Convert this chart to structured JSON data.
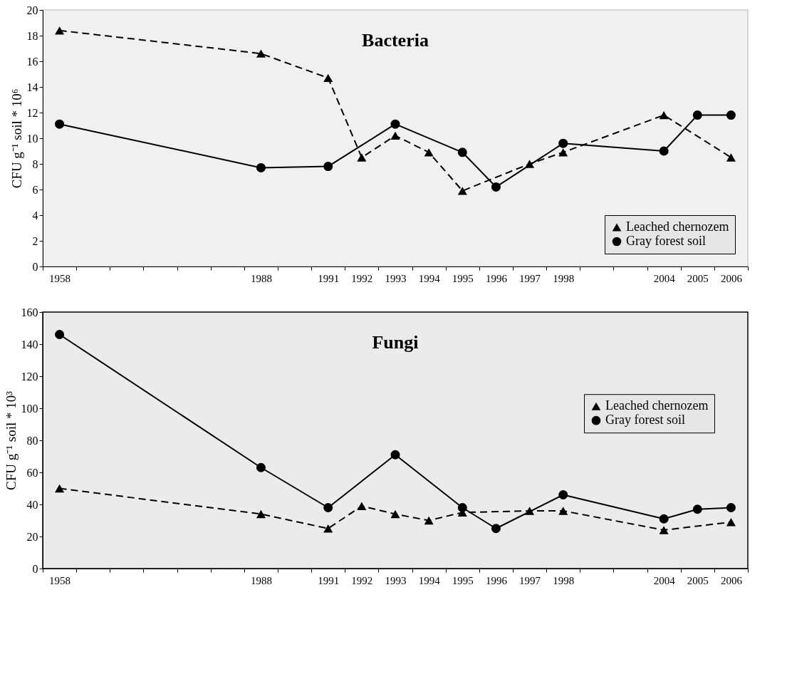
{
  "chart_data": [
    {
      "type": "line",
      "title": "Bacteria",
      "ylabel": "CFU g⁻¹ soil * 10⁶",
      "categories": [
        "1958",
        null,
        null,
        null,
        null,
        null,
        "1988",
        null,
        "1991",
        "1992",
        "1993",
        "1994",
        "1995",
        "1996",
        "1997",
        "1998",
        null,
        null,
        "2004",
        "2005",
        "2006"
      ],
      "series": [
        {
          "name": "Leached chernozem",
          "color": "#000000",
          "marker": "triangle",
          "line_style": "dashed",
          "values": [
            18.4,
            null,
            null,
            null,
            null,
            null,
            16.6,
            null,
            14.7,
            8.5,
            10.2,
            8.9,
            5.9,
            null,
            8.0,
            8.9,
            null,
            null,
            11.8,
            null,
            8.5
          ]
        },
        {
          "name": "Gray forest soil",
          "color": "#000000",
          "marker": "circle",
          "line_style": "solid",
          "values": [
            11.1,
            null,
            null,
            null,
            null,
            null,
            7.7,
            null,
            7.8,
            null,
            11.1,
            null,
            8.9,
            6.2,
            null,
            9.6,
            null,
            null,
            9.0,
            11.8,
            11.8
          ]
        }
      ],
      "ylim": [
        0,
        20
      ],
      "yticks": [
        0,
        2,
        4,
        6,
        8,
        10,
        12,
        14,
        16,
        18,
        20
      ],
      "grid": false,
      "legend": "bottom right"
    },
    {
      "type": "line",
      "title": "Fungi",
      "ylabel": "CFU g⁻¹ soil * 10³",
      "categories": [
        "1958",
        null,
        null,
        null,
        null,
        null,
        "1988",
        null,
        "1991",
        "1992",
        "1993",
        "1994",
        "1995",
        "1996",
        "1997",
        "1998",
        null,
        null,
        "2004",
        "2005",
        "2006"
      ],
      "series": [
        {
          "name": "Leached chernozem",
          "color": "#000000",
          "marker": "triangle",
          "line_style": "dashed",
          "values": [
            50,
            null,
            null,
            null,
            null,
            null,
            34,
            null,
            25,
            39,
            34,
            30,
            35,
            null,
            36,
            36,
            null,
            null,
            24,
            null,
            29
          ]
        },
        {
          "name": "Gray forest soil",
          "color": "#000000",
          "marker": "circle",
          "line_style": "solid",
          "values": [
            146,
            null,
            null,
            null,
            null,
            null,
            63,
            null,
            38,
            null,
            71,
            null,
            38,
            25,
            null,
            46,
            null,
            null,
            31,
            37,
            38
          ]
        }
      ],
      "ylim": [
        0,
        160
      ],
      "yticks": [
        0,
        20,
        40,
        60,
        80,
        100,
        120,
        140,
        160
      ],
      "grid": false,
      "legend": "right"
    }
  ]
}
